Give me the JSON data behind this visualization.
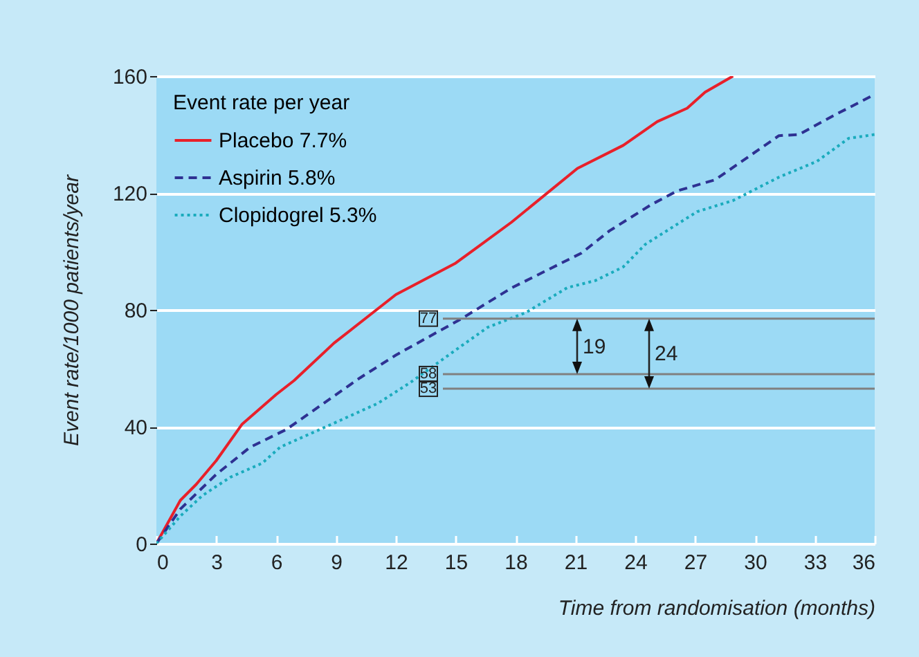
{
  "chart_data": {
    "type": "line",
    "xlabel": "Time from randomisation (months)",
    "ylabel": "Event rate/1000 patients/year",
    "legend_title": "Event rate per year",
    "legend": "top left",
    "grid": "y",
    "xlim": [
      0,
      36
    ],
    "xticks": [
      0,
      3,
      6,
      9,
      12,
      15,
      18,
      21,
      24,
      27,
      30,
      33,
      36
    ],
    "ylim": [
      0,
      160
    ],
    "yticks": [
      0,
      40,
      80,
      120,
      160
    ],
    "series": [
      {
        "name": "Placebo 7.7%",
        "color": "#e8202a",
        "line_style": "solid",
        "x": [
          0,
          1.2,
          2,
          3,
          4.3,
          6,
          6.9,
          8.9,
          12,
          15,
          16.2,
          17.8,
          21.1,
          23.4,
          25.1,
          26.6,
          27.5,
          28.9
        ],
        "values": [
          0,
          14.8,
          20.3,
          28.4,
          40.9,
          51,
          55.8,
          68.6,
          85.2,
          96,
          102,
          110,
          128.4,
          136.3,
          144.4,
          149,
          154.5,
          160
        ]
      },
      {
        "name": "Aspirin 5.8%",
        "color": "#2e3192",
        "line_style": "dashed",
        "x": [
          0,
          1.2,
          3,
          4.7,
          6.5,
          8.8,
          10.2,
          12,
          15.3,
          17.8,
          21.3,
          22.7,
          24.8,
          26.1,
          28,
          31.2,
          32.2,
          34,
          36
        ],
        "values": [
          0,
          11.8,
          23.7,
          33,
          39,
          50,
          56.7,
          64.5,
          77,
          87.5,
          99.4,
          107,
          116,
          120.7,
          124.5,
          139.6,
          140,
          146.7,
          153.7
        ]
      },
      {
        "name": "Clopidogrel 5.3%",
        "color": "#1aabbd",
        "line_style": "dotted",
        "x": [
          0,
          1.2,
          2.3,
          3.7,
          5.3,
          6.2,
          8.8,
          11.1,
          12.7,
          15.3,
          16.6,
          18.5,
          20.6,
          22,
          23.4,
          24.5,
          27.1,
          28.9,
          31.2,
          33.1,
          34.7,
          36
        ],
        "values": [
          0,
          9.4,
          16.4,
          22.7,
          27.5,
          33,
          40.9,
          48,
          55,
          67.7,
          74,
          79,
          87.6,
          90,
          94.7,
          102.4,
          113.6,
          117.4,
          125.4,
          130.8,
          138.7,
          140
        ]
      }
    ],
    "ref_lines": [
      {
        "axis": "y",
        "value": 77,
        "label": "77",
        "color": "#808080"
      },
      {
        "axis": "y",
        "value": 58,
        "label": "58",
        "color": "#808080"
      },
      {
        "axis": "y",
        "value": 53,
        "label": "53",
        "color": "#808080"
      }
    ],
    "annotations": [
      "19",
      "24"
    ]
  }
}
